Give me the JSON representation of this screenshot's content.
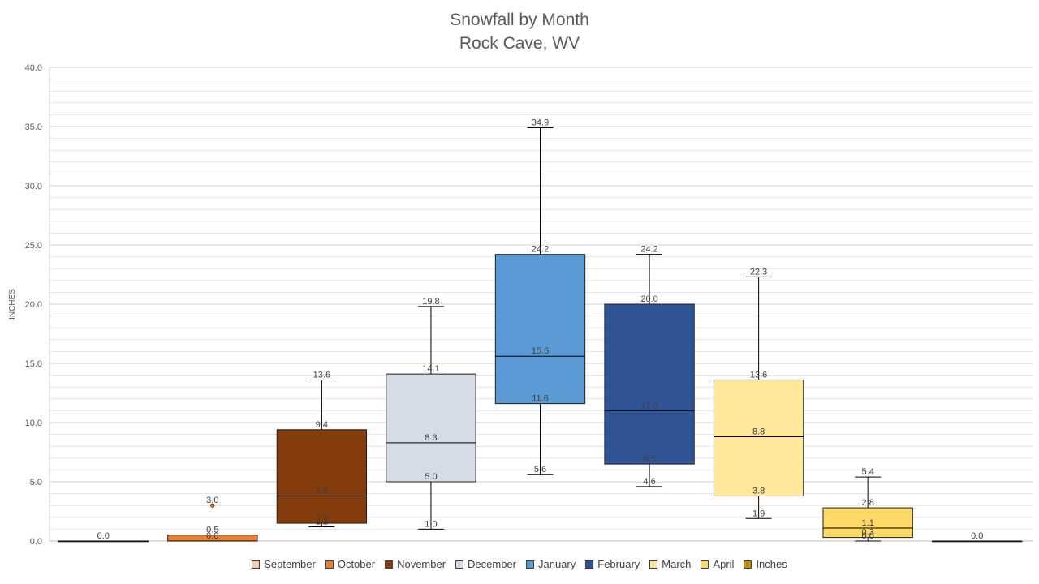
{
  "chart_data": {
    "type": "box",
    "title": [
      "Snowfall by Month",
      "Rock Cave, WV"
    ],
    "ylabel": "INCHES",
    "ylim": [
      0,
      40
    ],
    "ytick_step": 5,
    "ytick_labels": [
      "0.0",
      "5.0",
      "10.0",
      "15.0",
      "20.0",
      "25.0",
      "30.0",
      "35.0",
      "40.0"
    ],
    "minor_grid_step": 1,
    "grid": true,
    "legend_position": "bottom",
    "legend": [
      "September",
      "October",
      "November",
      "December",
      "January",
      "February",
      "March",
      "April",
      "Inches"
    ],
    "series": [
      {
        "name": "September",
        "color": "#f8cbad",
        "min": 0,
        "q1": 0,
        "median": 0,
        "q3": 0,
        "max": 0,
        "outliers": [],
        "labels": [
          {
            "v": 0.0,
            "t": "0.0"
          }
        ]
      },
      {
        "name": "October",
        "color": "#ed7d31",
        "min": 0,
        "q1": 0,
        "median": 0,
        "q3": 0.5,
        "max": 0.5,
        "outliers": [
          3.0
        ],
        "labels": [
          {
            "v": 3.0,
            "t": "3.0"
          },
          {
            "v": 0.5,
            "t": "0.5"
          },
          {
            "v": 0.0,
            "t": "0.0"
          }
        ]
      },
      {
        "name": "November",
        "color": "#843c0c",
        "min": 1.2,
        "q1": 1.5,
        "median": 3.8,
        "q3": 9.4,
        "max": 13.6,
        "outliers": [],
        "labels": [
          {
            "v": 13.6,
            "t": "13.6"
          },
          {
            "v": 9.4,
            "t": "9.4"
          },
          {
            "v": 3.8,
            "t": "3.8"
          },
          {
            "v": 1.5,
            "t": "1.5"
          },
          {
            "v": 1.2,
            "t": "1.2"
          }
        ]
      },
      {
        "name": "December",
        "color": "#d6dce5",
        "min": 1.0,
        "q1": 5.0,
        "median": 8.3,
        "q3": 14.1,
        "max": 19.8,
        "outliers": [],
        "labels": [
          {
            "v": 19.8,
            "t": "19.8"
          },
          {
            "v": 14.1,
            "t": "14.1"
          },
          {
            "v": 8.3,
            "t": "8.3"
          },
          {
            "v": 5.0,
            "t": "5.0"
          },
          {
            "v": 1.0,
            "t": "1.0"
          }
        ]
      },
      {
        "name": "January",
        "color": "#5b9bd5",
        "min": 5.6,
        "q1": 11.6,
        "median": 15.6,
        "q3": 24.2,
        "max": 34.9,
        "outliers": [],
        "labels": [
          {
            "v": 34.9,
            "t": "34.9"
          },
          {
            "v": 24.2,
            "t": "24.2"
          },
          {
            "v": 15.6,
            "t": "15.6"
          },
          {
            "v": 11.6,
            "t": "11.6"
          },
          {
            "v": 5.6,
            "t": "5.6"
          }
        ]
      },
      {
        "name": "February",
        "color": "#2f5597",
        "min": 4.6,
        "q1": 6.5,
        "median": 11.0,
        "q3": 20.0,
        "max": 24.2,
        "outliers": [],
        "labels": [
          {
            "v": 24.2,
            "t": "24.2"
          },
          {
            "v": 20.0,
            "t": "20.0"
          },
          {
            "v": 11.0,
            "t": "11.0"
          },
          {
            "v": 6.5,
            "t": "6.5"
          },
          {
            "v": 4.6,
            "t": "4.6"
          }
        ]
      },
      {
        "name": "March",
        "color": "#ffe699",
        "min": 1.9,
        "q1": 3.8,
        "median": 8.8,
        "q3": 13.6,
        "max": 22.3,
        "outliers": [],
        "labels": [
          {
            "v": 22.3,
            "t": "22.3"
          },
          {
            "v": 13.6,
            "t": "13.6"
          },
          {
            "v": 8.8,
            "t": "8.8"
          },
          {
            "v": 3.8,
            "t": "3.8"
          },
          {
            "v": 1.9,
            "t": "1.9"
          }
        ]
      },
      {
        "name": "April",
        "color": "#ffd966",
        "min": 0.0,
        "q1": 0.3,
        "median": 1.1,
        "q3": 2.8,
        "max": 5.4,
        "outliers": [],
        "labels": [
          {
            "v": 5.4,
            "t": "5.4"
          },
          {
            "v": 2.8,
            "t": "2.8"
          },
          {
            "v": 1.1,
            "t": "1.1"
          },
          {
            "v": 0.3,
            "t": "0.3"
          },
          {
            "v": 0.0,
            "t": "0.0"
          }
        ]
      },
      {
        "name": "Inches",
        "color": "#bf9000",
        "min": 0,
        "q1": 0,
        "median": 0,
        "q3": 0,
        "max": 0,
        "outliers": [],
        "labels": [
          {
            "v": 0.0,
            "t": "0.0"
          }
        ]
      }
    ]
  }
}
